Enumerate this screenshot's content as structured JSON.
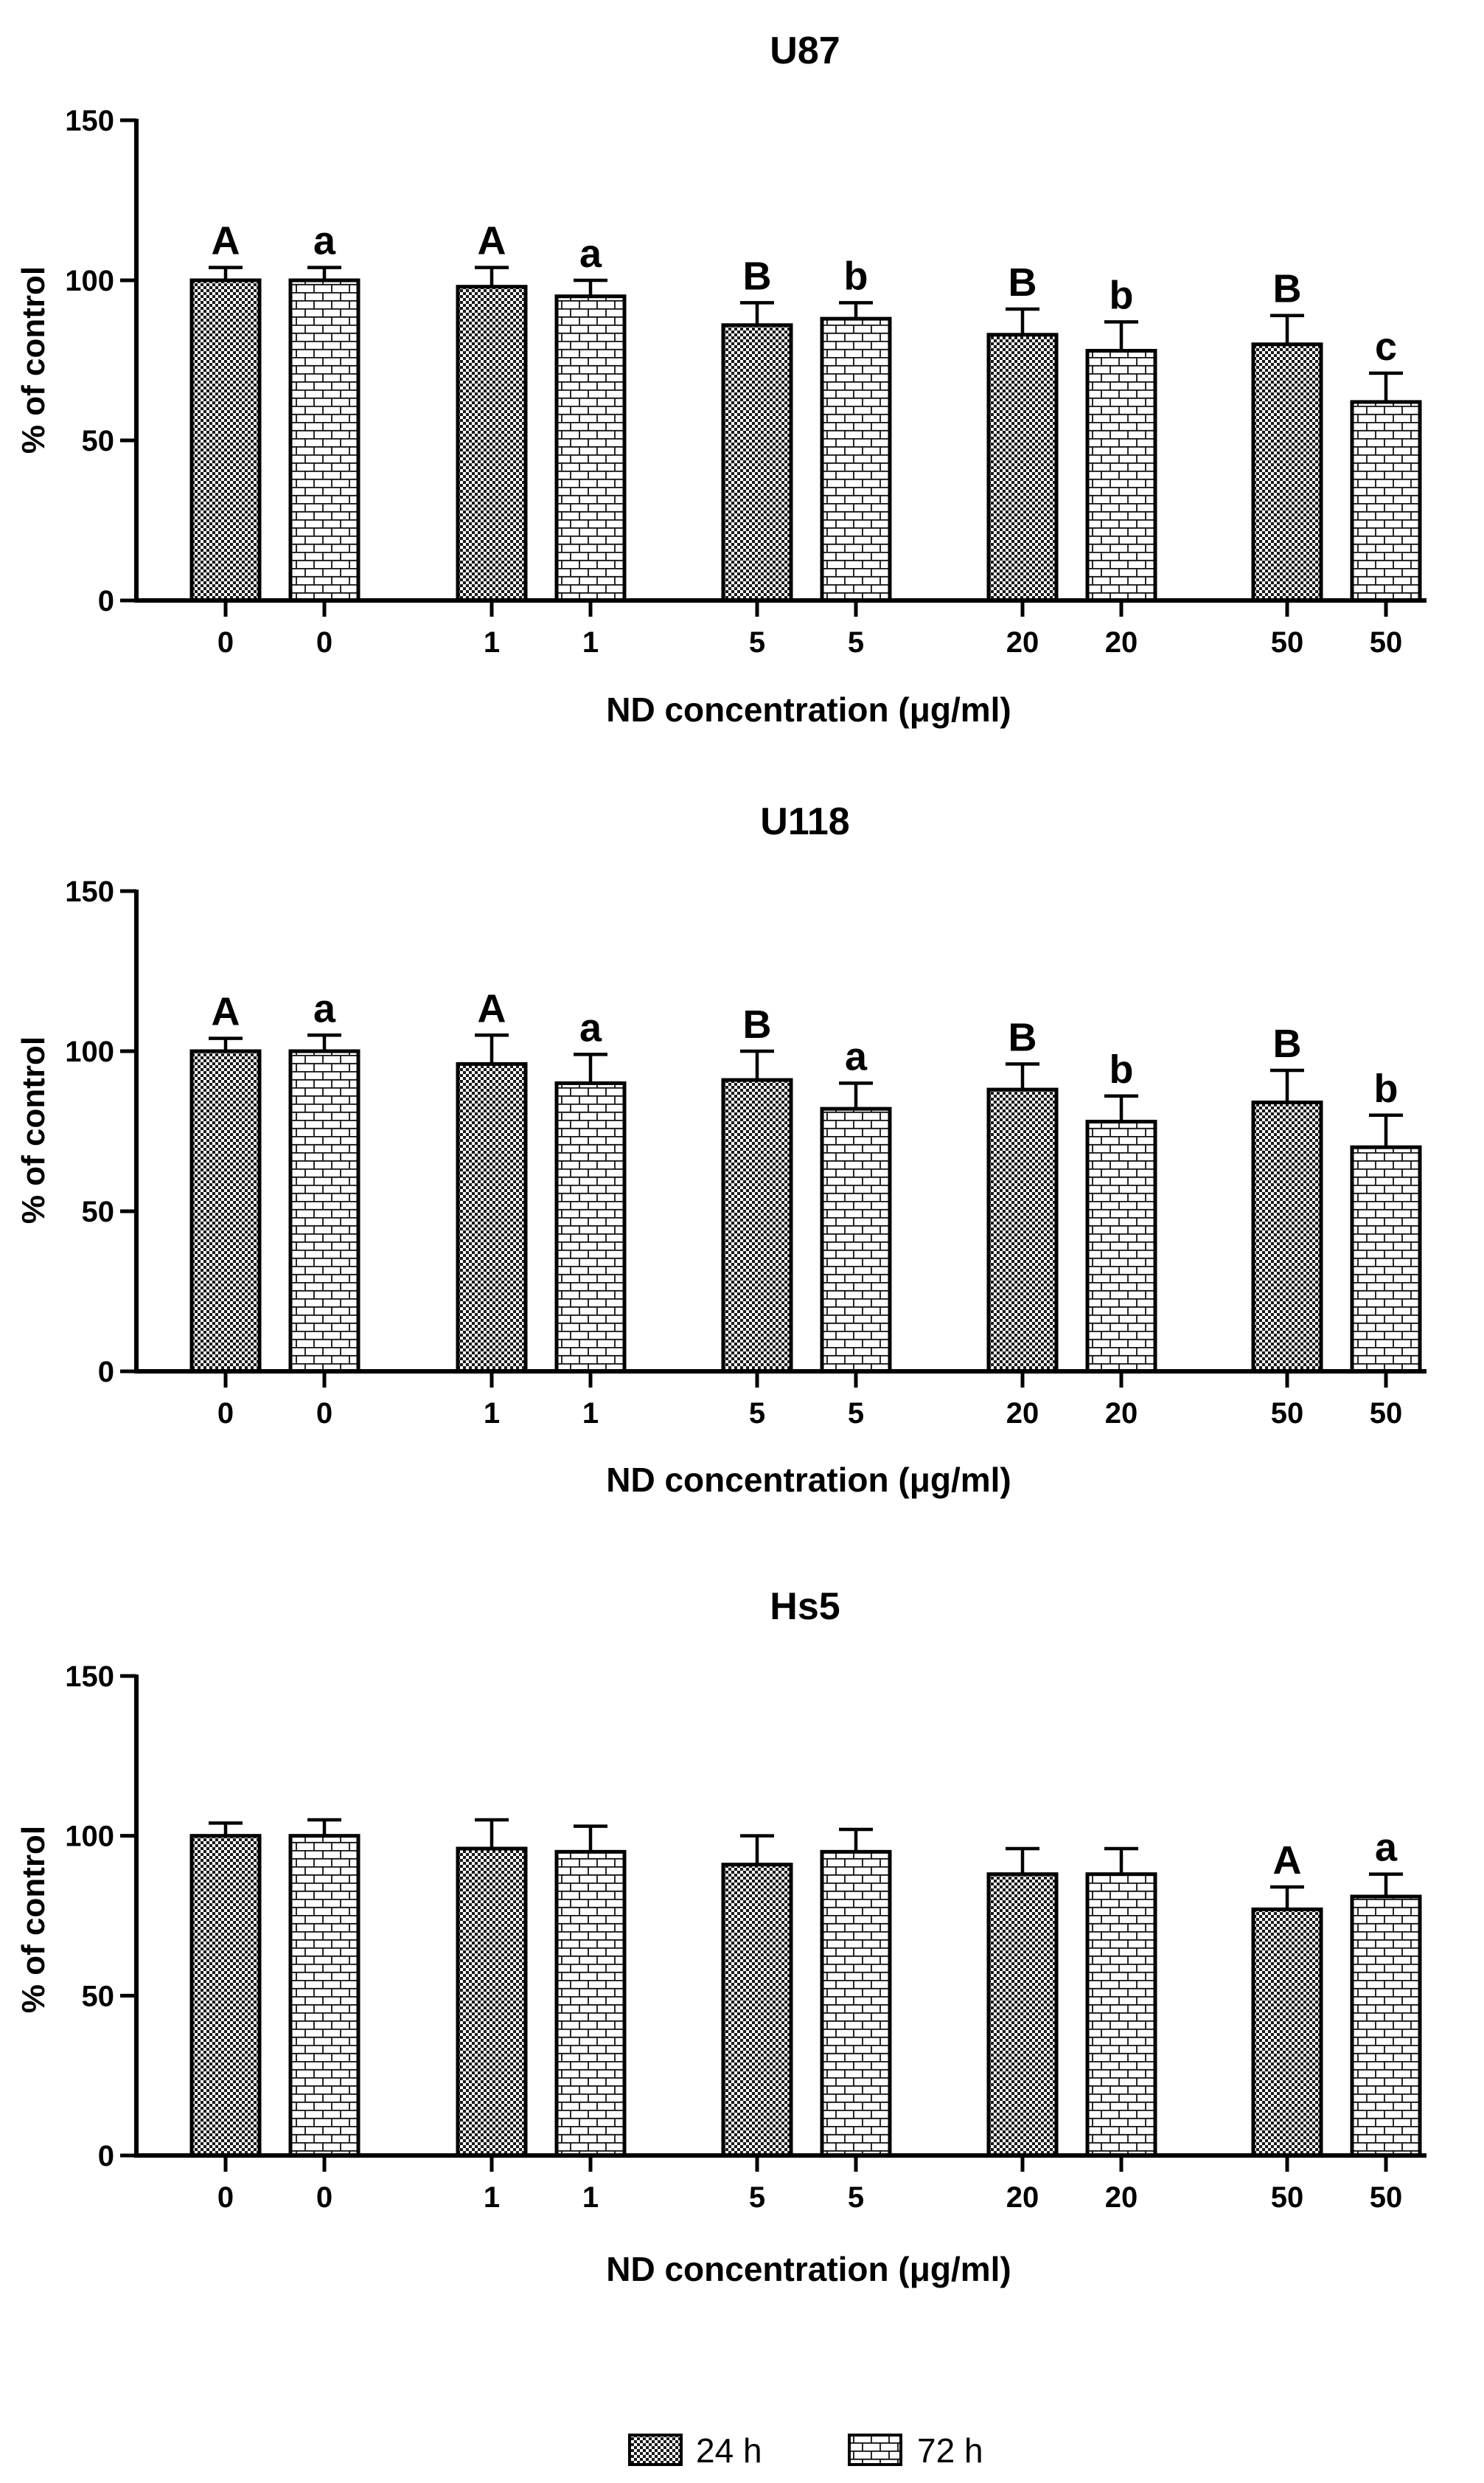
{
  "chart_data": [
    {
      "type": "bar",
      "title": "U87",
      "xlabel": "ND concentration (μg/ml)",
      "ylabel": "% of control",
      "ylim": [
        0,
        150
      ],
      "yticks": [
        "0",
        "50",
        "100",
        "150"
      ],
      "tick_labels": [
        "0",
        "0",
        "1",
        "1",
        "5",
        "5",
        "20",
        "20",
        "50",
        "50"
      ],
      "categories": [
        "0",
        "1",
        "5",
        "20",
        "50"
      ],
      "series": [
        {
          "name": "24 h",
          "values": [
            100,
            98,
            86,
            83,
            80
          ],
          "errors": [
            4,
            6,
            7,
            8,
            9
          ],
          "letters": [
            "A",
            "A",
            "B",
            "B",
            "B"
          ]
        },
        {
          "name": "72 h",
          "values": [
            100,
            95,
            88,
            78,
            62
          ],
          "errors": [
            4,
            5,
            5,
            9,
            9
          ],
          "letters": [
            "a",
            "a",
            "b",
            "b",
            "c"
          ]
        }
      ]
    },
    {
      "type": "bar",
      "title": "U118",
      "xlabel": "ND concentration (μg/ml)",
      "ylabel": "%  of control",
      "ylim": [
        0,
        150
      ],
      "yticks": [
        "0",
        "50",
        "100",
        "150"
      ],
      "tick_labels": [
        "0",
        "0",
        "1",
        "1",
        "5",
        "5",
        "20",
        "20",
        "50",
        "50"
      ],
      "categories": [
        "0",
        "1",
        "5",
        "20",
        "50"
      ],
      "series": [
        {
          "name": "24 h",
          "values": [
            100,
            96,
            91,
            88,
            84
          ],
          "errors": [
            4,
            9,
            9,
            8,
            10
          ],
          "letters": [
            "A",
            "A",
            "B",
            "B",
            "B"
          ]
        },
        {
          "name": "72 h",
          "values": [
            100,
            90,
            82,
            78,
            70
          ],
          "errors": [
            5,
            9,
            8,
            8,
            10
          ],
          "letters": [
            "a",
            "a",
            "a",
            "b",
            "b"
          ]
        }
      ]
    },
    {
      "type": "bar",
      "title": "Hs5",
      "xlabel": "ND concentration (μg/ml)",
      "ylabel": "% of control",
      "ylim": [
        0,
        150
      ],
      "yticks": [
        "0",
        "50",
        "100",
        "150"
      ],
      "tick_labels": [
        "0",
        "0",
        "1",
        "1",
        "5",
        "5",
        "20",
        "20",
        "50",
        "50"
      ],
      "categories": [
        "0",
        "1",
        "5",
        "20",
        "50"
      ],
      "series": [
        {
          "name": "24 h",
          "values": [
            100,
            96,
            91,
            88,
            77
          ],
          "errors": [
            4,
            9,
            9,
            8,
            7
          ],
          "letters": [
            "",
            "",
            "",
            "",
            "A"
          ]
        },
        {
          "name": "72 h",
          "values": [
            100,
            95,
            95,
            88,
            81
          ],
          "errors": [
            5,
            8,
            7,
            8,
            7
          ],
          "letters": [
            "",
            "",
            "",
            "",
            "a"
          ]
        }
      ]
    }
  ],
  "legend": [
    {
      "label": "24 h",
      "pattern": "checker"
    },
    {
      "label": "72 h",
      "pattern": "brick"
    }
  ]
}
